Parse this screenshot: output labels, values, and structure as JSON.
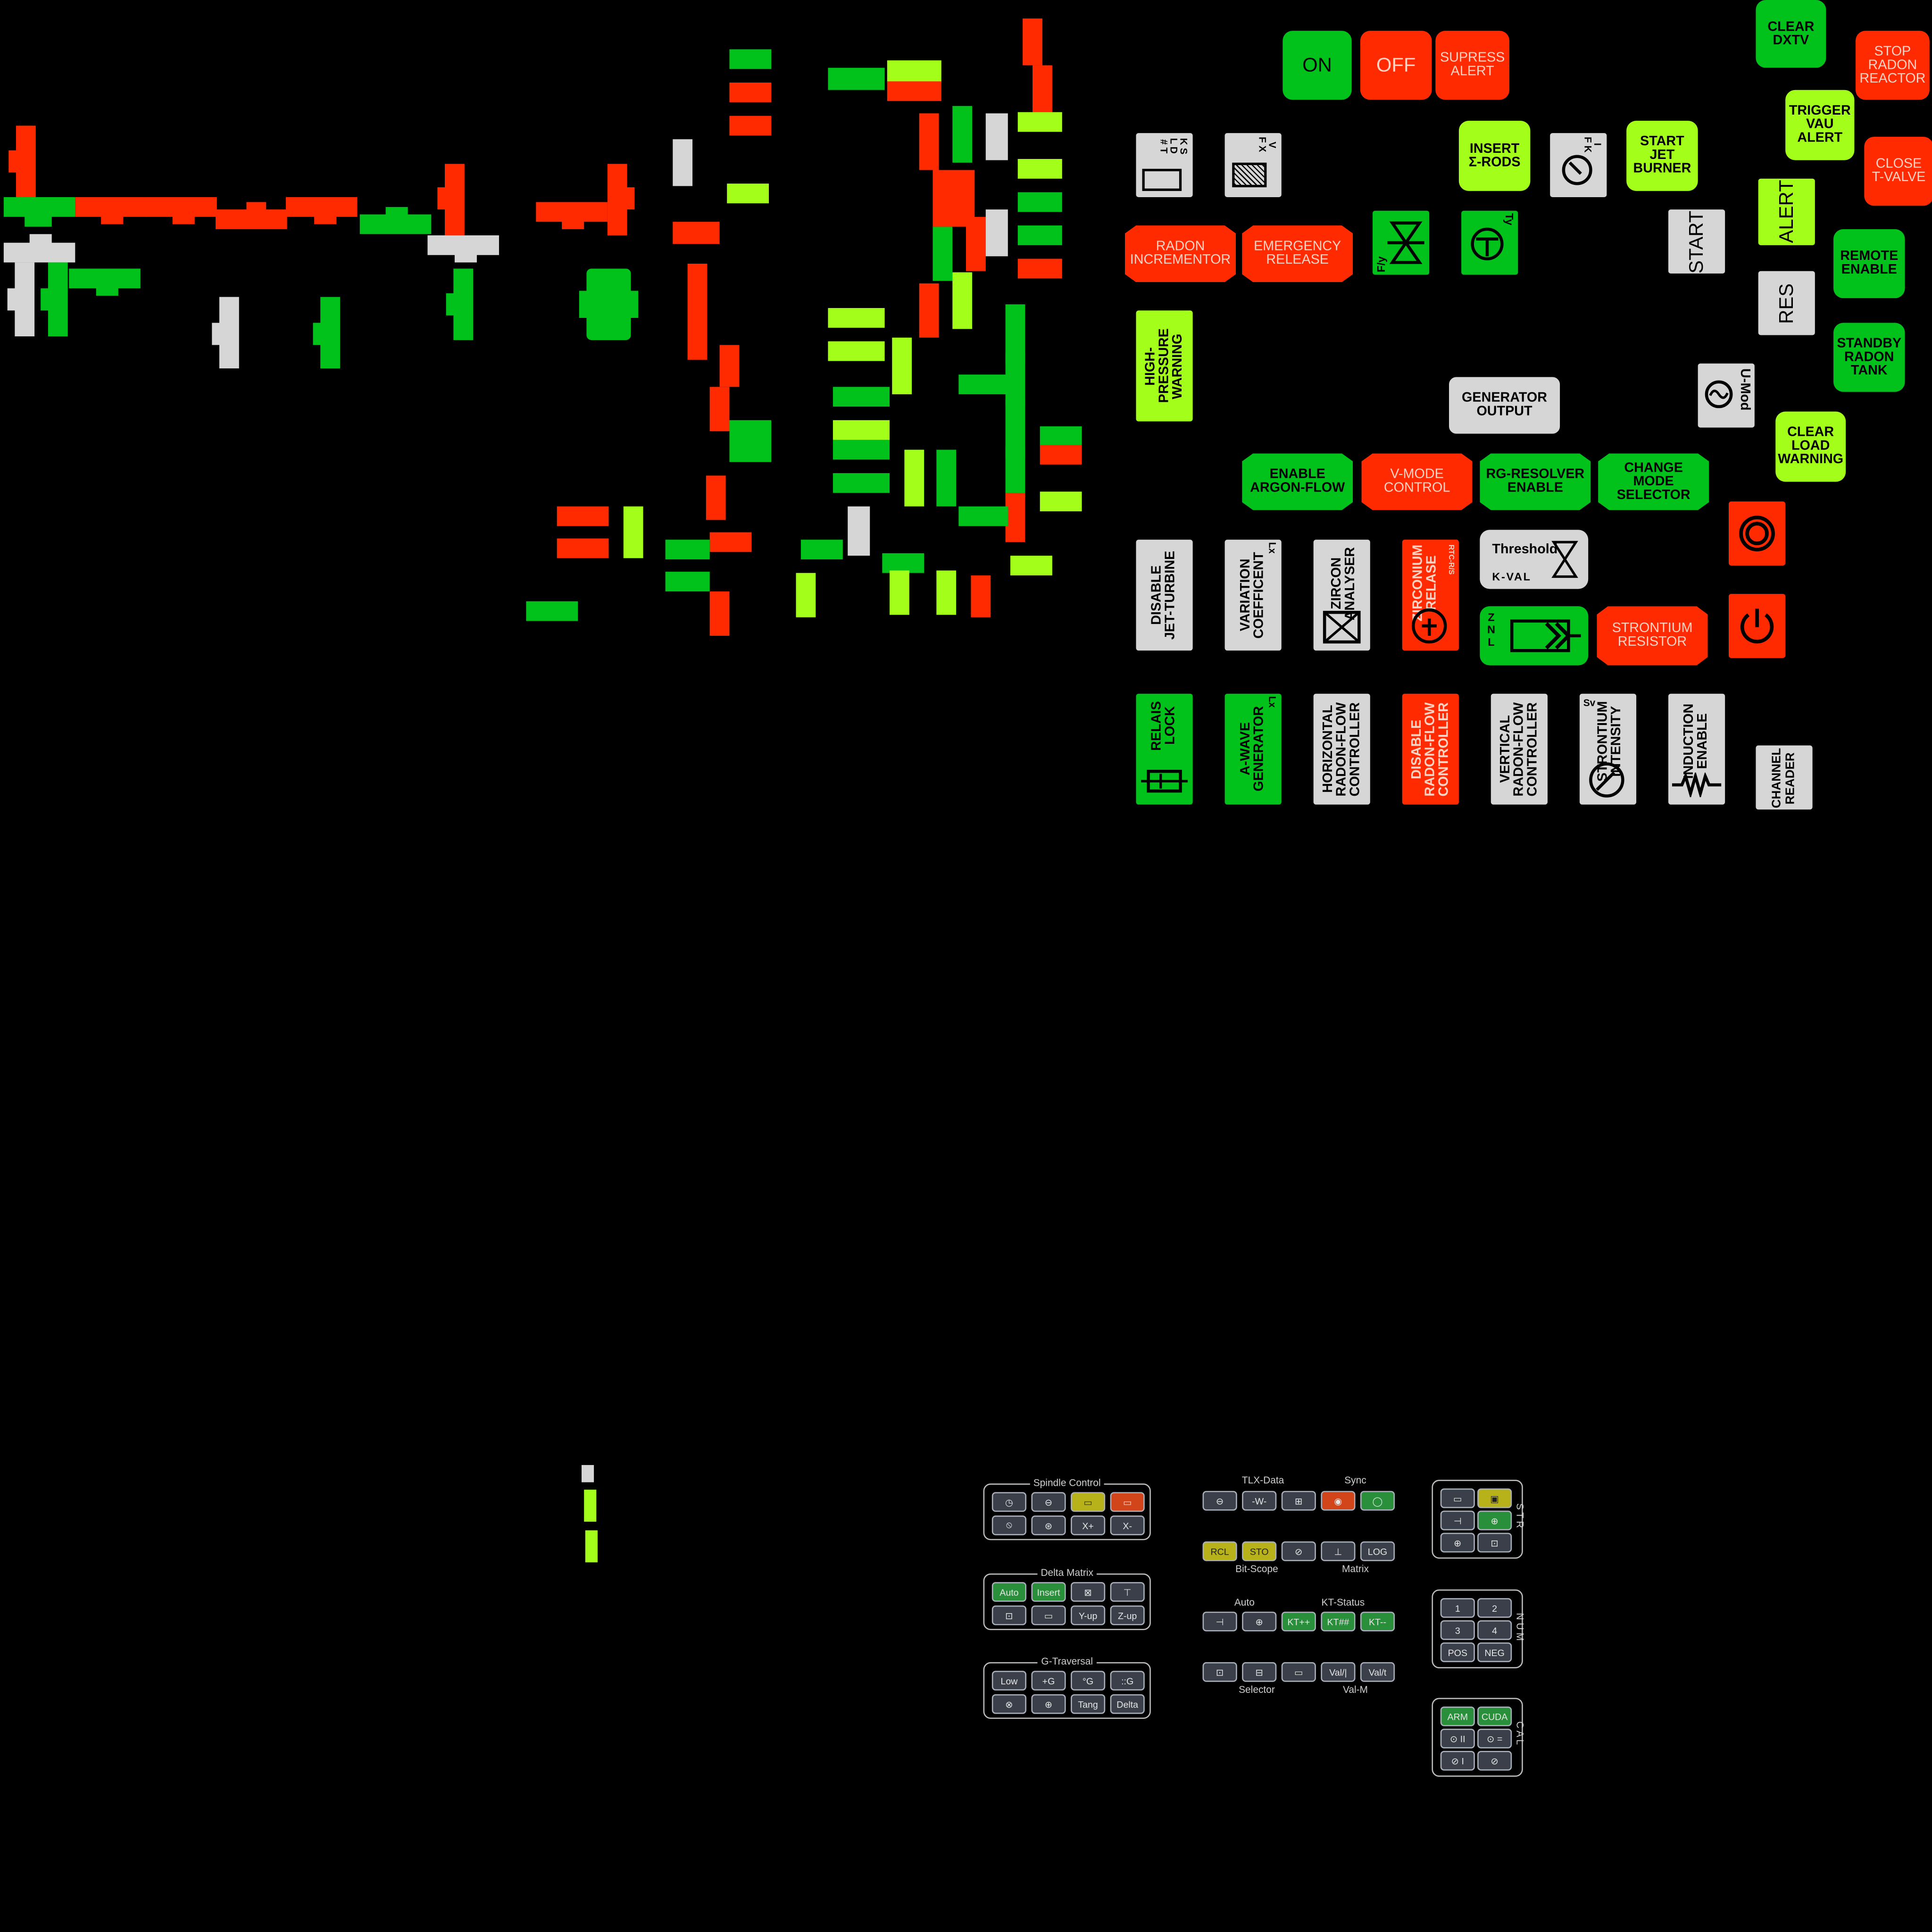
{
  "colors": {
    "red": "#ff2a00",
    "green": "#00c21a",
    "lime": "#a3ff1a",
    "white": "#d6d6d6",
    "background": "#000000"
  },
  "buttons": {
    "on": "ON",
    "off": "OFF",
    "supress_alert": "SUPRESS\nALERT",
    "clear_dxtv": "CLEAR\nDXTV",
    "stop_radon_reactor": "STOP\nRADON\nREACTOR",
    "trigger_vau_alert": "TRIGGER\nVAU\nALERT",
    "close_t_valve": "CLOSE\nT-VALVE",
    "insert_rods": "INSERT\nΣ-RODS",
    "start_jet_burner": "START\nJET\nBURNER",
    "radon_incrementor": "RADON\nINCREMENTOR",
    "emergency_release": "EMERGENCY\nRELEASE",
    "alert": "ALERT",
    "start": "START",
    "remote_enable": "REMOTE\nENABLE",
    "res": "RES",
    "standby_radon_tank": "STANDBY\nRADON\nTANK",
    "high_pressure_warning": "HIGH-PRESSURE\nWARNING",
    "generator_output": "GENERATOR\nOUTPUT",
    "u_mod": "U-Mod",
    "clear_load_warning": "CLEAR\nLOAD\nWARNING",
    "enable_argon_flow": "ENABLE\nARGON-FLOW",
    "v_mode_control": "V-MODE\nCONTROL",
    "rg_resolver_enable": "RG-RESOLVER\nENABLE",
    "change_mode_selector": "CHANGE\nMODE\nSELECTOR",
    "disable_jet_turbine": "DISABLE\nJET-TURBINE",
    "variation_coefficient": "VARIATION\nCOEFFICENT",
    "variation_unit": "Lx",
    "zircon_analyser": "ZIRCON\nANALYSER",
    "zirconium_relase": "ZIRCONIUM\nRELASE",
    "zirconium_code": "RTC-R/S",
    "threshold": "Threshold",
    "k_val": "K-VAL",
    "strontium_resistor": "STRONTIUM\nRESISTOR",
    "relais_lock": "RELAIS\nLOCK",
    "a_wave_generator": "A-WAVE\nGENERATOR",
    "a_wave_unit": "Lx",
    "horizontal_radon_flow": "HORIZONTAL\nRADON-FLOW\nCONTROLLER",
    "disable_radon_flow": "DISABLE\nRADON-FLOW\nCONTROLLER",
    "vertical_radon_flow": "VERTICAL\nRADON-FLOW\nCONTROLLER",
    "strontium_intensity": "STRONTIUM\nINTENSITY",
    "strontium_unit": "Sv",
    "induction_enable": "INDUCTION\nENABLE",
    "channel_reader": "CHANNEL\nREADER",
    "ksld_label": "K S\nL D\n# T",
    "vfx_label": "V\nF X",
    "ifk_label": "I\nF K",
    "fy_label": "F/y",
    "ty_label": "Ty",
    "znl_label": "Z\nN\nL"
  },
  "panels": {
    "spindle_control": {
      "title": "Spindle Control",
      "keys": [
        "◷",
        "⊖",
        "▭",
        "▭",
        "⦸",
        "⊛",
        "X+",
        "X-"
      ]
    },
    "delta_matrix": {
      "title": "Delta Matrix",
      "keys": [
        "Auto",
        "Insert",
        "⊠",
        "⊤",
        "⊡",
        "▭",
        "Y-up",
        "Z-up"
      ]
    },
    "g_traversal": {
      "title": "G-Traversal",
      "keys": [
        "Low",
        "+G",
        "°G",
        "::G",
        "⊗",
        "⊕",
        "Tang",
        "Delta"
      ]
    },
    "tlx_data": {
      "title": "TLX-Data",
      "keys": [
        "⊖",
        "-W-",
        "⊞"
      ]
    },
    "sync": {
      "title": "Sync",
      "keys": [
        "◉",
        "◯"
      ]
    },
    "bit_scope": {
      "title": "Bit-Scope",
      "keys": [
        "RCL",
        "STO",
        "⊘"
      ]
    },
    "matrix": {
      "title": "Matrix",
      "keys": [
        "⊥",
        "LOG"
      ]
    },
    "auto": {
      "title": "Auto",
      "keys": [
        "⊣",
        "⊕"
      ]
    },
    "kt_status": {
      "title": "KT-Status",
      "keys": [
        "KT++",
        "KT##",
        "KT--"
      ]
    },
    "selector": {
      "title": "Selector",
      "keys": [
        "⊡",
        "⊟",
        "▭"
      ]
    },
    "val_m": {
      "title": "Val-M",
      "keys": [
        "Val/|",
        "Val/t"
      ]
    },
    "str": {
      "side": "S T R",
      "keys": [
        "▭",
        "▣",
        "⊣",
        "⊕",
        "⊕",
        "⊡"
      ]
    },
    "num": {
      "side": "N U M",
      "keys": [
        "1",
        "2",
        "3",
        "4",
        "POS",
        "NEG"
      ]
    },
    "cal": {
      "side": "C A L",
      "keys": [
        "ARM",
        "CUDA",
        "⊙ II",
        "⊙ =",
        "⊘ I",
        "⊘"
      ]
    }
  }
}
